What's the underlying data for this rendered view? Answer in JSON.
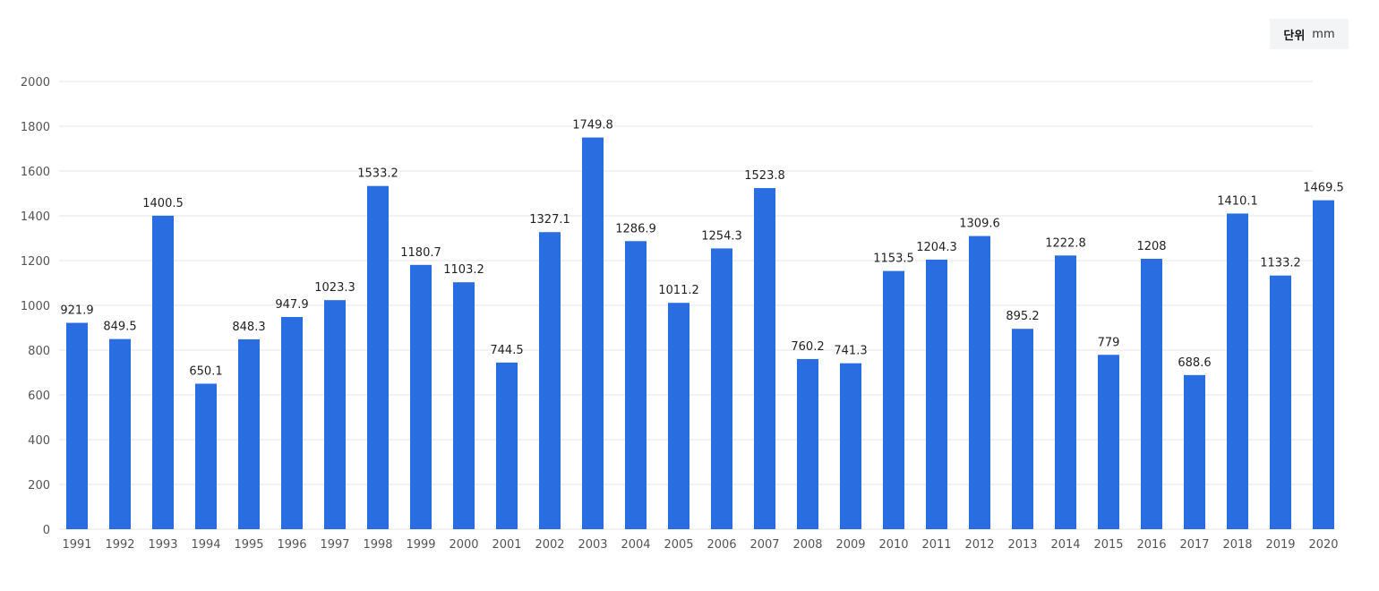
{
  "unit": {
    "label": "단위",
    "value": "mm"
  },
  "colors": {
    "bar": "#2a6de0",
    "grid": "#e6e6e6",
    "axis_text": "#555555",
    "label_text": "#222222",
    "badge_bg": "#f3f4f6"
  },
  "chart_data": {
    "type": "bar",
    "title": "",
    "xlabel": "",
    "ylabel": "",
    "ylim": [
      0,
      2000
    ],
    "yticks": [
      0,
      200,
      400,
      600,
      800,
      1000,
      1200,
      1400,
      1600,
      1800,
      2000
    ],
    "grid": true,
    "legend": "none",
    "categories": [
      "1991",
      "1992",
      "1993",
      "1994",
      "1995",
      "1996",
      "1997",
      "1998",
      "1999",
      "2000",
      "2001",
      "2002",
      "2003",
      "2004",
      "2005",
      "2006",
      "2007",
      "2008",
      "2009",
      "2010",
      "2011",
      "2012",
      "2013",
      "2014",
      "2015",
      "2016",
      "2017",
      "2018",
      "2019",
      "2020"
    ],
    "values": [
      921.9,
      849.5,
      1400.5,
      650.1,
      848.3,
      947.9,
      1023.3,
      1533.2,
      1180.7,
      1103.2,
      744.5,
      1327.1,
      1749.8,
      1286.9,
      1011.2,
      1254.3,
      1523.8,
      760.2,
      741.3,
      1153.5,
      1204.3,
      1309.6,
      895.2,
      1222.8,
      779,
      1208,
      688.6,
      1410.1,
      1133.2,
      1469.5
    ],
    "value_labels": [
      "921.9",
      "849.5",
      "1400.5",
      "650.1",
      "848.3",
      "947.9",
      "1023.3",
      "1533.2",
      "1180.7",
      "1103.2",
      "744.5",
      "1327.1",
      "1749.8",
      "1286.9",
      "1011.2",
      "1254.3",
      "1523.8",
      "760.2",
      "741.3",
      "1153.5",
      "1204.3",
      "1309.6",
      "895.2",
      "1222.8",
      "779",
      "1208",
      "688.6",
      "1410.1",
      "1133.2",
      "1469.5"
    ]
  }
}
